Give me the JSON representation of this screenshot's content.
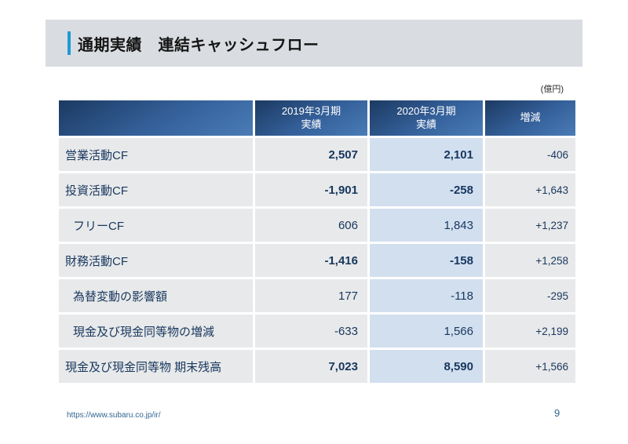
{
  "slide": {
    "title": "通期実績　連結キャッシュフロー",
    "unit_label": "(億円)",
    "footer_url": "https://www.subaru.co.jp/ir/",
    "page_number": "9"
  },
  "table": {
    "columns": [
      {
        "line1": "",
        "line2": ""
      },
      {
        "line1": "2019年3月期",
        "line2": "実績"
      },
      {
        "line1": "2020年3月期",
        "line2": "実績"
      },
      {
        "line1": "増減",
        "line2": ""
      }
    ],
    "rows": [
      {
        "label": "営業活動CF",
        "indent": false,
        "emphasis": true,
        "fy2019": "2,507",
        "fy2020": "2,101",
        "change": "-406"
      },
      {
        "label": "投資活動CF",
        "indent": false,
        "emphasis": true,
        "fy2019": "-1,901",
        "fy2020": "-258",
        "change": "+1,643"
      },
      {
        "label": "フリーCF",
        "indent": true,
        "emphasis": false,
        "fy2019": "606",
        "fy2020": "1,843",
        "change": "+1,237"
      },
      {
        "label": "財務活動CF",
        "indent": false,
        "emphasis": true,
        "fy2019": "-1,416",
        "fy2020": "-158",
        "change": "+1,258"
      },
      {
        "label": "為替変動の影響額",
        "indent": true,
        "emphasis": false,
        "fy2019": "177",
        "fy2020": "-118",
        "change": "-295"
      },
      {
        "label": "現金及び現金同等物の増減",
        "indent": true,
        "emphasis": false,
        "fy2019": "-633",
        "fy2020": "1,566",
        "change": "+2,199"
      },
      {
        "label": "現金及び現金同等物 期末残高",
        "indent": false,
        "emphasis": true,
        "fy2019": "7,023",
        "fy2020": "8,590",
        "change": "+1,566"
      }
    ]
  },
  "colors": {
    "titlebar_gray": "#d9dce0",
    "accent_blue": "#1e9ad6",
    "header_gradient_dark": "#1c3a62",
    "header_gradient_light": "#4a7cb5",
    "row_gray": "#e8e9ea",
    "highlight_column_blue": "#d2dfef",
    "text_navy": "#17375e",
    "footer_blue": "#33658f"
  }
}
